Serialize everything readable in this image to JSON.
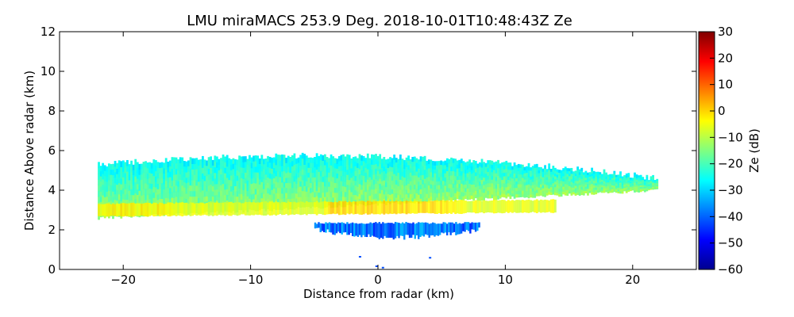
{
  "chart_data": {
    "type": "heatmap",
    "title": "LMU miraMACS 253.9 Deg. 2018-10-01T10:48:43Z  Ze",
    "xlabel": "Distance from radar (km)",
    "ylabel": "Distance Above radar  (km)",
    "xlim": [
      -25,
      25
    ],
    "ylim": [
      0,
      12
    ],
    "xticks": [
      -20,
      -10,
      0,
      10,
      20
    ],
    "xtick_labels": [
      "−20",
      "−10",
      "0",
      "10",
      "20"
    ],
    "yticks": [
      0,
      2,
      4,
      6,
      8,
      10,
      12
    ],
    "ytick_labels": [
      "0",
      "2",
      "4",
      "6",
      "8",
      "10",
      "12"
    ],
    "colorbar": {
      "label": "Ze (dB)",
      "range": [
        -60,
        30
      ],
      "colormap": "jet",
      "ticks": [
        30,
        20,
        10,
        0,
        -10,
        -20,
        -30,
        -40,
        -50,
        -60
      ],
      "tick_labels": [
        "30",
        "20",
        "10",
        "0",
        "−10",
        "−20",
        "−30",
        "−40",
        "−50",
        "−60"
      ]
    },
    "echo_layers": [
      {
        "name": "upper cloud",
        "x_start": -22,
        "x_end": 22,
        "bottom_left_km": 2.6,
        "bottom_right_km": 4.0,
        "top_left_km": 5.3,
        "top_center_km": 5.7,
        "top_right_km": 4.6,
        "ze_dB_range": [
          -30,
          -8
        ]
      },
      {
        "name": "bright core",
        "x_start": -22,
        "x_end": 14,
        "center_left_km": 3.0,
        "center_right_km": 3.2,
        "ze_dB_peak": 2
      },
      {
        "name": "lower fringe",
        "x_start": -5,
        "x_end": 8,
        "bottom_km": 1.5,
        "top_km": 2.4,
        "ze_dB_range": [
          -45,
          -32
        ]
      }
    ],
    "colors": {
      "axes": "#000000",
      "background": "#ffffff"
    }
  }
}
